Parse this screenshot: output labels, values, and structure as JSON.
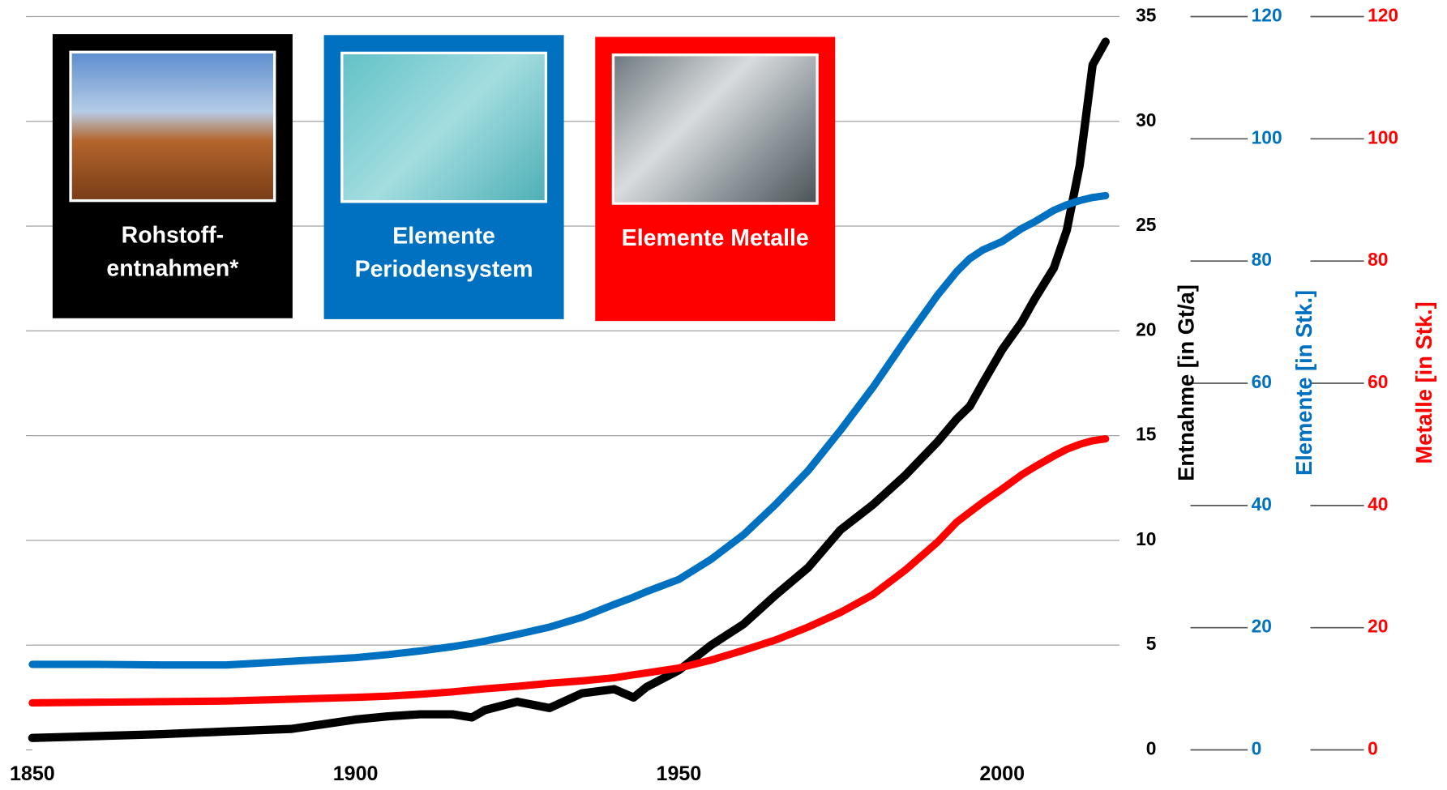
{
  "chart_data": {
    "type": "line",
    "x": [
      1850,
      1860,
      1870,
      1880,
      1890,
      1900,
      1905,
      1910,
      1915,
      1918,
      1920,
      1925,
      1930,
      1935,
      1940,
      1943,
      1945,
      1950,
      1955,
      1960,
      1965,
      1970,
      1975,
      1980,
      1985,
      1990,
      1993,
      1995,
      1997,
      2000,
      2003,
      2005,
      2008,
      2010,
      2012,
      2014,
      2016
    ],
    "xlim": [
      1850,
      2017
    ],
    "xticks": [
      1850,
      1900,
      1950,
      2000
    ],
    "ylim": [
      0,
      35
    ],
    "yticks": [
      0,
      5,
      10,
      15,
      20,
      25,
      30,
      35
    ],
    "y_label": "Entnahme [in Gt/a]",
    "y2lim": [
      0,
      120
    ],
    "y2ticks": [
      0,
      20,
      40,
      60,
      80,
      100,
      120
    ],
    "y2_label": "Elemente [in Stk.]",
    "y3lim": [
      0,
      120
    ],
    "y3ticks": [
      0,
      20,
      40,
      60,
      80,
      100,
      120
    ],
    "y3_label": "Metalle [in Stk.]",
    "grid": true,
    "series": [
      {
        "name": "Rohstoff- entnahmen*",
        "color": "#000000",
        "axis": "y",
        "values": [
          0.57,
          0.66,
          0.75,
          0.88,
          1.0,
          1.45,
          1.6,
          1.7,
          1.7,
          1.55,
          1.9,
          2.3,
          2.0,
          2.7,
          2.9,
          2.5,
          3.0,
          3.8,
          5.0,
          6.0,
          7.4,
          8.7,
          10.5,
          11.7,
          13.1,
          14.7,
          15.8,
          16.4,
          17.5,
          19.1,
          20.4,
          21.5,
          23.0,
          24.8,
          27.9,
          32.7,
          33.8
        ]
      },
      {
        "name": "Elemente Periodensystem",
        "color": "#0070c0",
        "axis": "y2",
        "values": [
          14.0,
          14.0,
          13.9,
          13.9,
          14.5,
          15.1,
          15.6,
          16.2,
          16.9,
          17.4,
          17.8,
          18.9,
          20.1,
          21.7,
          23.8,
          25.0,
          25.9,
          27.9,
          31.2,
          35.2,
          40.2,
          45.7,
          52.3,
          59.3,
          67.0,
          74.4,
          78.3,
          80.4,
          81.8,
          83.2,
          85.3,
          86.4,
          88.3,
          89.2,
          89.9,
          90.4,
          90.7
        ]
      },
      {
        "name": "Elemente Metalle",
        "color": "#ff0000",
        "axis": "y3",
        "values": [
          7.7,
          7.8,
          7.9,
          8.0,
          8.3,
          8.6,
          8.8,
          9.1,
          9.5,
          9.8,
          10.0,
          10.4,
          10.9,
          11.3,
          11.8,
          12.3,
          12.6,
          13.4,
          14.7,
          16.3,
          18.0,
          20.1,
          22.5,
          25.4,
          29.4,
          34.0,
          37.3,
          38.9,
          40.5,
          42.7,
          45.0,
          46.3,
          48.1,
          49.2,
          50.0,
          50.6,
          50.9
        ]
      }
    ]
  }
}
